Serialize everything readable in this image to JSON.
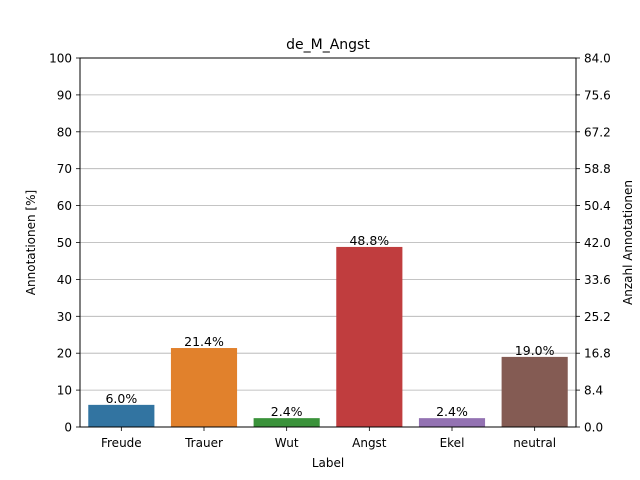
{
  "chart_data": {
    "type": "bar",
    "title": "de_M_Angst",
    "xlabel": "Label",
    "ylabel": "Annotationen [%]",
    "ylabel_right": "Anzahl Annotationen",
    "categories": [
      "Freude",
      "Trauer",
      "Wut",
      "Angst",
      "Ekel",
      "neutral"
    ],
    "values": [
      6.0,
      21.4,
      2.4,
      48.8,
      2.4,
      19.0
    ],
    "value_labels": [
      "6.0%",
      "21.4%",
      "2.4%",
      "48.8%",
      "2.4%",
      "19.0%"
    ],
    "colors": [
      "#3274a1",
      "#e1812c",
      "#3a923a",
      "#c03d3e",
      "#9372b2",
      "#845b53"
    ],
    "ylim": [
      0,
      100
    ],
    "yticks": [
      "0",
      "10",
      "20",
      "30",
      "40",
      "50",
      "60",
      "70",
      "80",
      "90",
      "100"
    ],
    "ylim_right": [
      0,
      84
    ],
    "yticks_right": [
      "0.0",
      "8.4",
      "16.8",
      "25.2",
      "33.6",
      "42.0",
      "50.4",
      "58.8",
      "67.2",
      "75.6",
      "84.0"
    ],
    "grid": true
  }
}
